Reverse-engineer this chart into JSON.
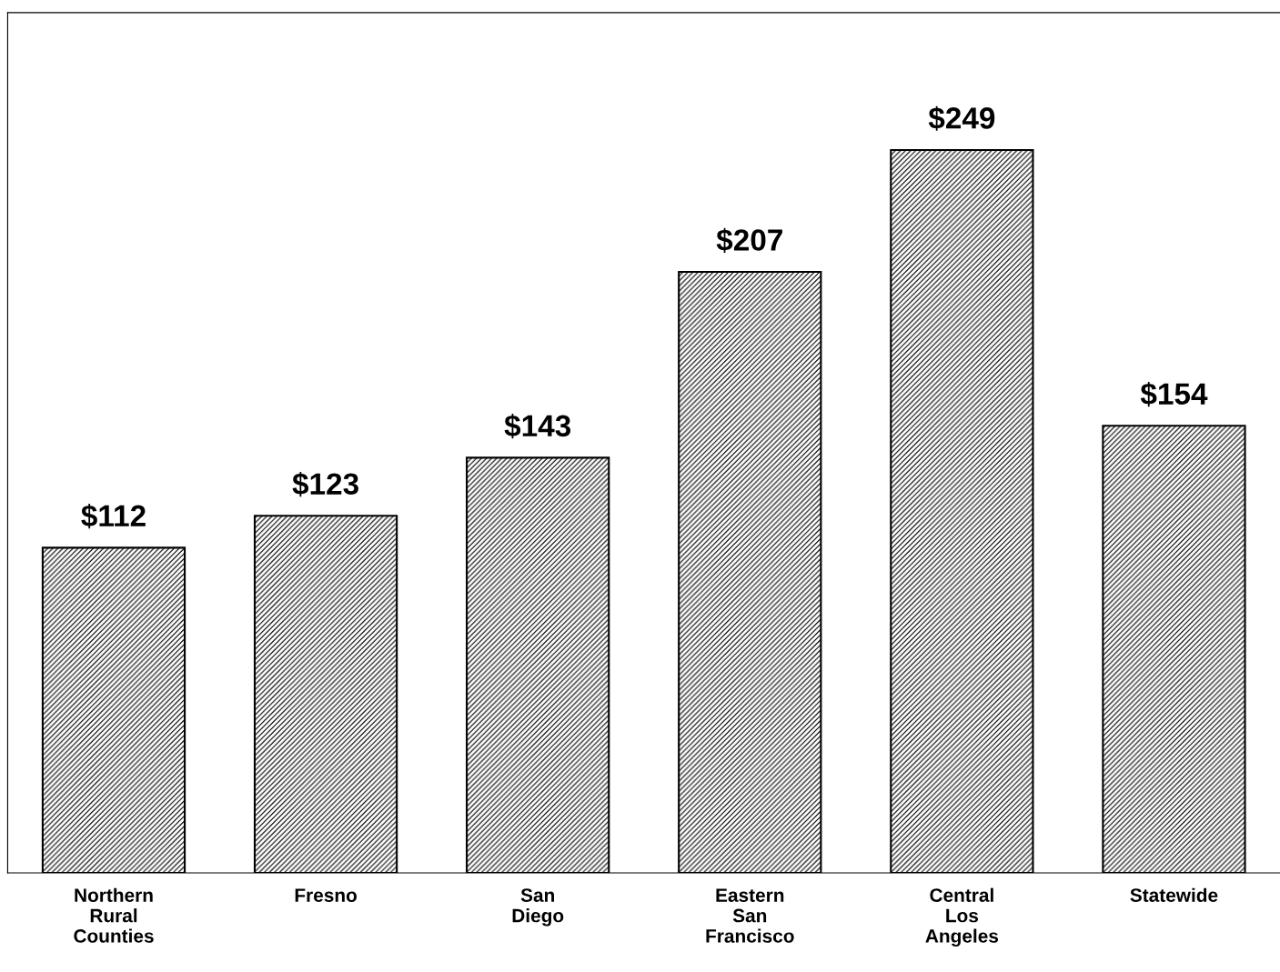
{
  "chart_data": {
    "type": "bar",
    "categories": [
      "Northern\nRural\nCounties",
      "Fresno",
      "San\nDiego",
      "Eastern\nSan\nFrancisco",
      "Central\nLos\nAngeles",
      "Statewide"
    ],
    "values": [
      112,
      123,
      143,
      207,
      249,
      154
    ],
    "value_labels": [
      "$112",
      "$123",
      "$143",
      "$207",
      "$249",
      "$154"
    ],
    "color": "#000000",
    "grid": false,
    "legend": false
  }
}
